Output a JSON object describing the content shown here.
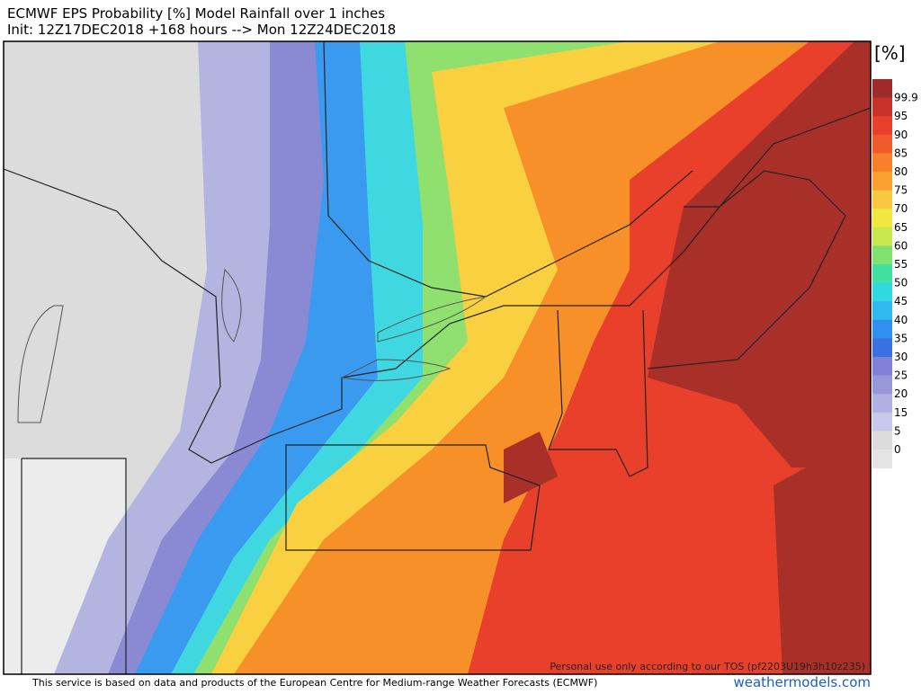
{
  "header": {
    "title": "ECMWF EPS Probability [%] Model Rainfall over 1 inches",
    "subtitle": "Init: 12Z17DEC2018 +168 hours --> Mon 12Z24DEC2018"
  },
  "colorbar": {
    "unit": "[%]",
    "labels": [
      "99.9",
      "95",
      "90",
      "85",
      "80",
      "75",
      "70",
      "65",
      "60",
      "55",
      "50",
      "45",
      "40",
      "35",
      "30",
      "25",
      "20",
      "15",
      "5",
      "0"
    ]
  },
  "map": {
    "watermark": "Personal use only according to our TOS (pf2203U19h3h10z235)"
  },
  "footer": {
    "credit": "This service is based on data and products of the European Centre for Medium-range Weather Forecasts (ECMWF)",
    "site": "weathermodels.com"
  }
}
